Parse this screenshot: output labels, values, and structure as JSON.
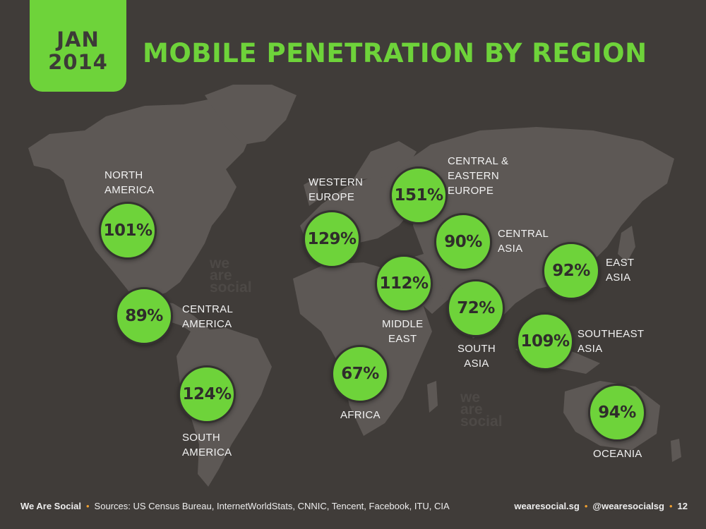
{
  "header": {
    "month": "JAN",
    "year": "2014",
    "title": "MOBILE PENETRATION BY REGION"
  },
  "colors": {
    "background": "#403c39",
    "accent_green": "#6ed33a",
    "land": "#5d5855",
    "footer_dot": "#f0a030"
  },
  "chart_data": {
    "type": "bubble-map",
    "title": "MOBILE PENETRATION BY REGION",
    "unit": "%",
    "regions": [
      {
        "id": "north-america",
        "label_lines": [
          "NORTH",
          "AMERICA"
        ],
        "value": 101,
        "display": "101%"
      },
      {
        "id": "central-america",
        "label_lines": [
          "CENTRAL",
          "AMERICA"
        ],
        "value": 89,
        "display": "89%"
      },
      {
        "id": "south-america",
        "label_lines": [
          "SOUTH",
          "AMERICA"
        ],
        "value": 124,
        "display": "124%"
      },
      {
        "id": "western-europe",
        "label_lines": [
          "WESTERN",
          "EUROPE"
        ],
        "value": 129,
        "display": "129%"
      },
      {
        "id": "central-eastern-europe",
        "label_lines": [
          "CENTRAL &",
          "EASTERN",
          "EUROPE"
        ],
        "value": 151,
        "display": "151%"
      },
      {
        "id": "central-asia",
        "label_lines": [
          "CENTRAL",
          "ASIA"
        ],
        "value": 90,
        "display": "90%"
      },
      {
        "id": "middle-east",
        "label_lines": [
          "MIDDLE",
          "EAST"
        ],
        "value": 112,
        "display": "112%"
      },
      {
        "id": "africa",
        "label_lines": [
          "AFRICA"
        ],
        "value": 67,
        "display": "67%"
      },
      {
        "id": "south-asia",
        "label_lines": [
          "SOUTH",
          "ASIA"
        ],
        "value": 72,
        "display": "72%"
      },
      {
        "id": "east-asia",
        "label_lines": [
          "EAST",
          "ASIA"
        ],
        "value": 92,
        "display": "92%"
      },
      {
        "id": "southeast-asia",
        "label_lines": [
          "SOUTHEAST",
          "ASIA"
        ],
        "value": 109,
        "display": "109%"
      },
      {
        "id": "oceania",
        "label_lines": [
          "OCEANIA"
        ],
        "value": 94,
        "display": "94%"
      }
    ]
  },
  "watermark": [
    "we",
    "are",
    "social"
  ],
  "footer": {
    "brand": "We Are Social",
    "sources": "Sources: US Census Bureau, InternetWorldStats, CNNIC, Tencent, Facebook, ITU, CIA",
    "site": "wearesocial.sg",
    "handle": "@wearesocialsg",
    "page": "12"
  }
}
